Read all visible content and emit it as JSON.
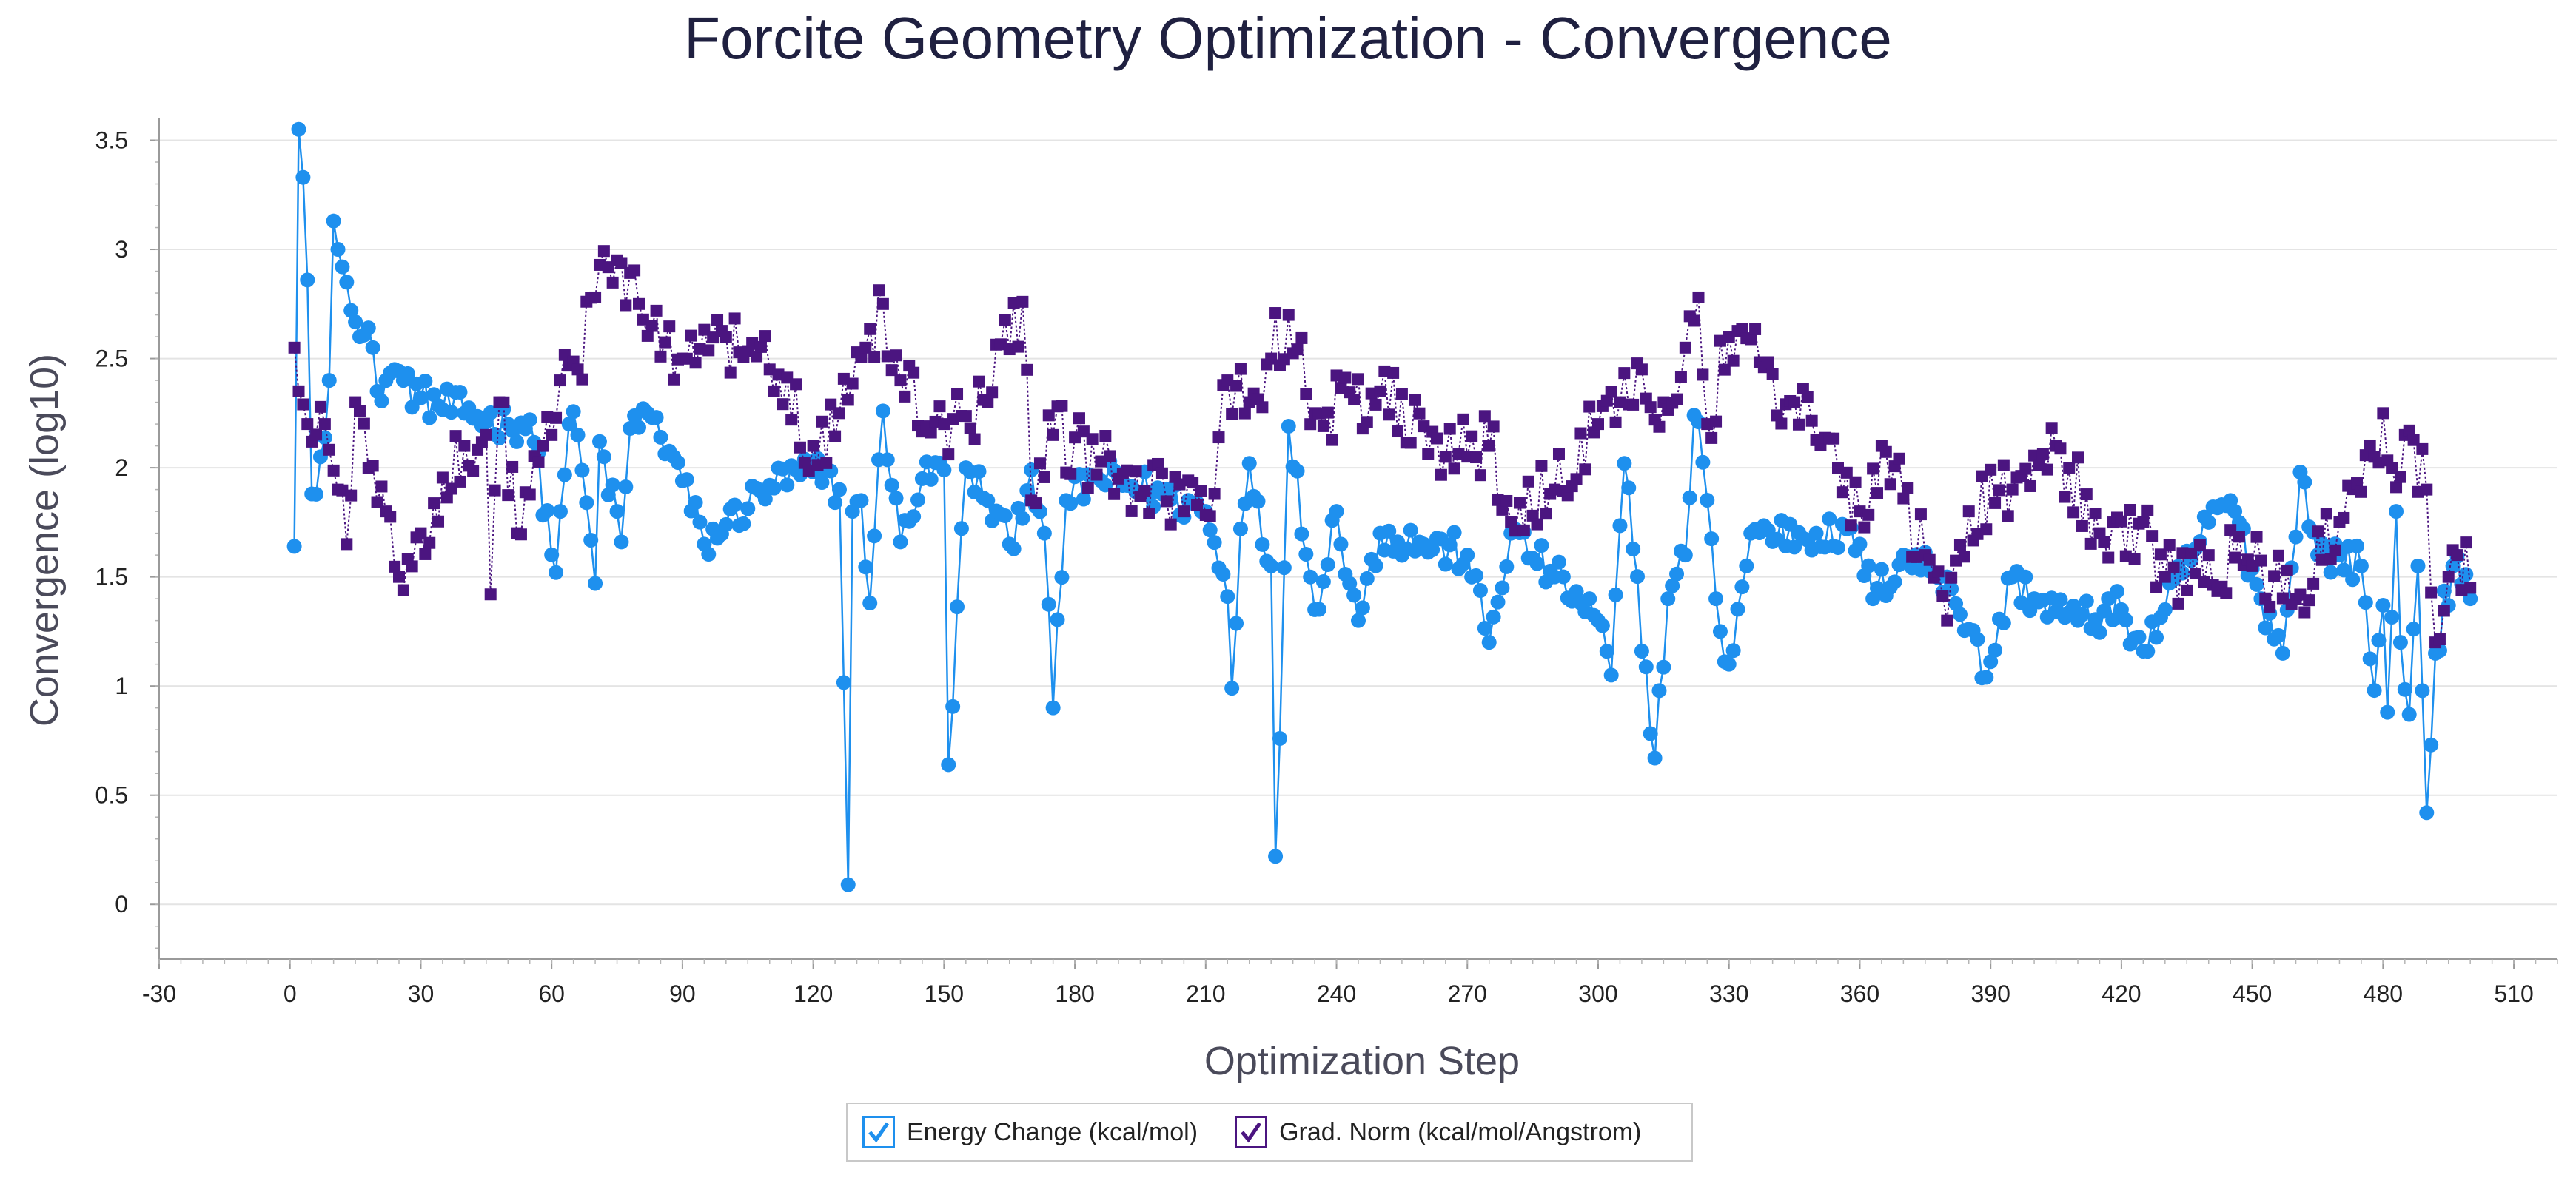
{
  "chart_data": {
    "type": "line",
    "title": "Forcite Geometry Optimization - Convergence",
    "xlabel": "Optimization Step",
    "ylabel": "Convergence (log10)",
    "xlim": [
      -30,
      520
    ],
    "ylim": [
      -0.25,
      3.6
    ],
    "x_ticks": [
      "-30",
      "0",
      "30",
      "60",
      "90",
      "120",
      "150",
      "180",
      "210",
      "240",
      "270",
      "300",
      "330",
      "360",
      "390",
      "420",
      "450",
      "480",
      "510"
    ],
    "y_ticks": [
      "0",
      "0.5",
      "1",
      "1.5",
      "2",
      "2.5",
      "3",
      "3.5"
    ],
    "grid": "horizontal",
    "legend_placement": "bottom-center",
    "series": [
      {
        "name": "Energy Change (kcal/mol)",
        "color": "#1e90ee",
        "marker": "circle",
        "line_style": "solid",
        "anchors": [
          [
            1,
            1.64
          ],
          [
            2,
            3.55
          ],
          [
            3,
            3.33
          ],
          [
            4,
            2.86
          ],
          [
            5,
            1.88
          ],
          [
            7,
            2.05
          ],
          [
            9,
            2.4
          ],
          [
            10,
            3.13
          ],
          [
            11,
            3.0
          ],
          [
            12,
            2.92
          ],
          [
            13,
            2.85
          ],
          [
            14,
            2.72
          ],
          [
            16,
            2.6
          ],
          [
            19,
            2.55
          ],
          [
            20,
            2.35
          ],
          [
            24,
            2.45
          ],
          [
            26,
            2.4
          ],
          [
            30,
            2.32
          ],
          [
            40,
            2.25
          ],
          [
            50,
            2.2
          ],
          [
            55,
            2.22
          ],
          [
            61,
            1.52
          ],
          [
            62,
            1.8
          ],
          [
            64,
            2.2
          ],
          [
            66,
            2.15
          ],
          [
            70,
            1.47
          ],
          [
            71,
            2.12
          ],
          [
            76,
            1.66
          ],
          [
            78,
            2.18
          ],
          [
            82,
            2.25
          ],
          [
            88,
            2.05
          ],
          [
            95,
            1.65
          ],
          [
            100,
            1.74
          ],
          [
            110,
            1.92
          ],
          [
            120,
            1.98
          ],
          [
            126,
            1.9
          ],
          [
            128,
            0.09
          ],
          [
            129,
            1.8
          ],
          [
            131,
            1.85
          ],
          [
            133,
            1.38
          ],
          [
            136,
            2.26
          ],
          [
            140,
            1.66
          ],
          [
            145,
            1.95
          ],
          [
            150,
            1.99
          ],
          [
            151,
            0.64
          ],
          [
            155,
            2.0
          ],
          [
            160,
            1.85
          ],
          [
            165,
            1.65
          ],
          [
            170,
            1.99
          ],
          [
            173,
            1.7
          ],
          [
            175,
            0.9
          ],
          [
            178,
            1.85
          ],
          [
            185,
            1.96
          ],
          [
            200,
            1.88
          ],
          [
            210,
            1.8
          ],
          [
            215,
            1.41
          ],
          [
            216,
            0.99
          ],
          [
            218,
            1.72
          ],
          [
            220,
            2.02
          ],
          [
            225,
            1.55
          ],
          [
            226,
            0.22
          ],
          [
            227,
            0.76
          ],
          [
            229,
            2.19
          ],
          [
            235,
            1.35
          ],
          [
            240,
            1.8
          ],
          [
            245,
            1.3
          ],
          [
            250,
            1.7
          ],
          [
            260,
            1.65
          ],
          [
            270,
            1.6
          ],
          [
            275,
            1.2
          ],
          [
            280,
            1.7
          ],
          [
            290,
            1.5
          ],
          [
            296,
            1.38
          ],
          [
            300,
            1.3
          ],
          [
            303,
            1.05
          ],
          [
            306,
            2.02
          ],
          [
            313,
            0.67
          ],
          [
            316,
            1.4
          ],
          [
            320,
            1.6
          ],
          [
            322,
            2.24
          ],
          [
            323,
            2.21
          ],
          [
            327,
            1.4
          ],
          [
            328,
            1.25
          ],
          [
            330,
            1.1
          ],
          [
            335,
            1.7
          ],
          [
            350,
            1.7
          ],
          [
            360,
            1.65
          ],
          [
            363,
            1.4
          ],
          [
            370,
            1.6
          ],
          [
            380,
            1.5
          ],
          [
            385,
            1.26
          ],
          [
            389,
            1.04
          ],
          [
            395,
            1.5
          ],
          [
            400,
            1.4
          ],
          [
            410,
            1.3
          ],
          [
            420,
            1.35
          ],
          [
            425,
            1.16
          ],
          [
            430,
            1.35
          ],
          [
            440,
            1.75
          ],
          [
            445,
            1.85
          ],
          [
            452,
            1.4
          ],
          [
            457,
            1.15
          ],
          [
            461,
            1.98
          ],
          [
            465,
            1.6
          ],
          [
            470,
            1.6
          ],
          [
            475,
            1.55
          ],
          [
            478,
            0.98
          ],
          [
            480,
            1.37
          ],
          [
            481,
            0.88
          ],
          [
            483,
            1.8
          ],
          [
            484,
            1.2
          ],
          [
            486,
            0.87
          ],
          [
            488,
            1.55
          ],
          [
            490,
            0.42
          ],
          [
            492,
            1.15
          ],
          [
            496,
            1.55
          ],
          [
            500,
            1.4
          ]
        ]
      },
      {
        "name": "Grad. Norm (kcal/mol/Angstrom)",
        "color": "#4b1580",
        "marker": "square",
        "line_style": "dotted",
        "anchors": [
          [
            1,
            2.55
          ],
          [
            2,
            2.35
          ],
          [
            4,
            2.2
          ],
          [
            8,
            2.2
          ],
          [
            11,
            1.9
          ],
          [
            13,
            1.65
          ],
          [
            15,
            2.3
          ],
          [
            18,
            2.0
          ],
          [
            22,
            1.8
          ],
          [
            25,
            1.5
          ],
          [
            30,
            1.7
          ],
          [
            40,
            2.1
          ],
          [
            45,
            2.15
          ],
          [
            46,
            1.42
          ],
          [
            48,
            2.3
          ],
          [
            52,
            1.7
          ],
          [
            58,
            2.1
          ],
          [
            60,
            2.15
          ],
          [
            62,
            2.4
          ],
          [
            66,
            2.45
          ],
          [
            70,
            2.78
          ],
          [
            75,
            2.95
          ],
          [
            80,
            2.75
          ],
          [
            90,
            2.5
          ],
          [
            100,
            2.6
          ],
          [
            110,
            2.45
          ],
          [
            120,
            2.1
          ],
          [
            126,
            2.25
          ],
          [
            132,
            2.55
          ],
          [
            136,
            2.75
          ],
          [
            140,
            2.4
          ],
          [
            150,
            2.2
          ],
          [
            160,
            2.3
          ],
          [
            168,
            2.76
          ],
          [
            170,
            1.85
          ],
          [
            175,
            2.15
          ],
          [
            190,
            1.95
          ],
          [
            205,
            1.8
          ],
          [
            212,
            1.88
          ],
          [
            215,
            2.4
          ],
          [
            220,
            2.3
          ],
          [
            225,
            2.5
          ],
          [
            229,
            2.7
          ],
          [
            235,
            2.25
          ],
          [
            250,
            2.35
          ],
          [
            265,
            2.05
          ],
          [
            275,
            2.1
          ],
          [
            280,
            1.75
          ],
          [
            290,
            1.9
          ],
          [
            300,
            2.2
          ],
          [
            305,
            2.3
          ],
          [
            310,
            2.45
          ],
          [
            315,
            2.3
          ],
          [
            320,
            2.55
          ],
          [
            323,
            2.78
          ],
          [
            325,
            2.2
          ],
          [
            330,
            2.6
          ],
          [
            345,
            2.3
          ],
          [
            355,
            2.0
          ],
          [
            360,
            1.8
          ],
          [
            365,
            2.1
          ],
          [
            375,
            1.6
          ],
          [
            380,
            1.3
          ],
          [
            385,
            1.8
          ],
          [
            395,
            1.9
          ],
          [
            405,
            2.1
          ],
          [
            415,
            1.7
          ],
          [
            425,
            1.75
          ],
          [
            430,
            1.5
          ],
          [
            440,
            1.6
          ],
          [
            450,
            1.55
          ],
          [
            460,
            1.4
          ],
          [
            470,
            1.75
          ],
          [
            478,
            2.05
          ],
          [
            480,
            2.25
          ],
          [
            482,
            2.0
          ],
          [
            485,
            2.15
          ],
          [
            490,
            1.9
          ],
          [
            492,
            1.2
          ],
          [
            495,
            1.5
          ],
          [
            497,
            1.6
          ],
          [
            500,
            1.45
          ]
        ]
      }
    ]
  }
}
